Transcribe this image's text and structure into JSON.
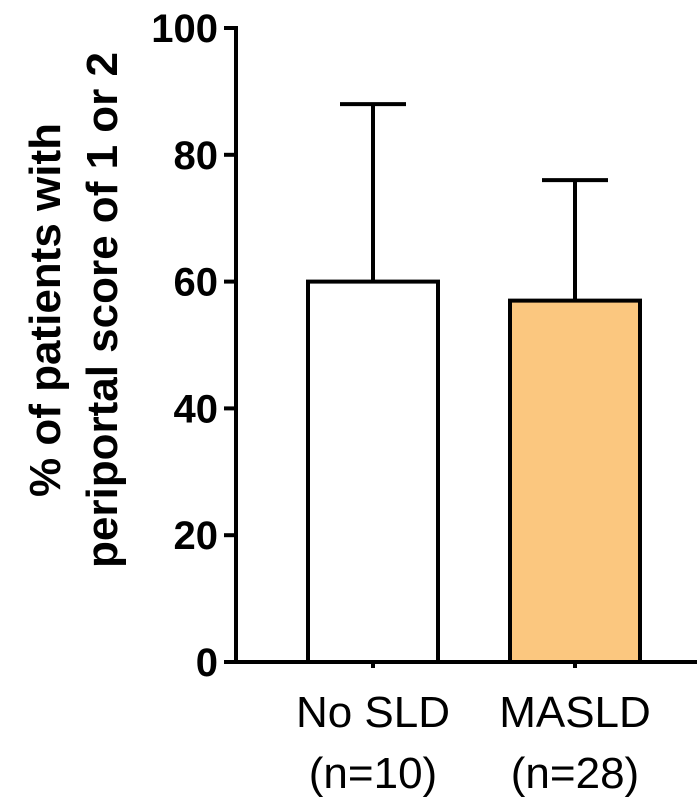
{
  "chart_data": {
    "type": "bar",
    "categories": [
      "No SLD",
      "MASLD"
    ],
    "category_sublabels": [
      "(n=10)",
      "(n=28)"
    ],
    "values": [
      60,
      57
    ],
    "error_upper": [
      88,
      76
    ],
    "bar_colors": [
      "#ffffff",
      "#fbc77f"
    ],
    "ylabel_lines": [
      "% of patients with",
      "periportal score of 1 or 2"
    ],
    "ylim": [
      0,
      100
    ],
    "yticks": [
      0,
      20,
      40,
      60,
      80,
      100
    ],
    "grid": false,
    "legend": "none"
  }
}
